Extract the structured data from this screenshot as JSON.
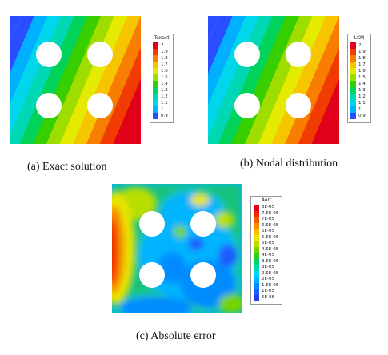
{
  "figure": {
    "panels": [
      {
        "id": "a",
        "caption": "(a) Exact solution",
        "legend_title": "Texact",
        "legend_labels": [
          "2",
          "1.9",
          "1.8",
          "1.7",
          "1.6",
          "1.5",
          "1.4",
          "1.3",
          "1.2",
          "1.1",
          "1",
          "0.9"
        ],
        "legend_colors": [
          "#e0001a",
          "#f03c00",
          "#f77e00",
          "#f7c400",
          "#e4ea00",
          "#9fdc00",
          "#37cf00",
          "#00d25a",
          "#00d7b4",
          "#00d7ec",
          "#00b0ff",
          "#2a4dff"
        ],
        "field": "linear-gradient"
      },
      {
        "id": "b",
        "caption": "(b) Nodal distribution",
        "legend_title": "LKM",
        "legend_labels": [
          "2",
          "1.9",
          "1.8",
          "1.7",
          "1.6",
          "1.5",
          "1.4",
          "1.3",
          "1.2",
          "1.1",
          "1",
          "0.9"
        ],
        "legend_colors": [
          "#e0001a",
          "#f03c00",
          "#f77e00",
          "#f7c400",
          "#e4ea00",
          "#9fdc00",
          "#37cf00",
          "#00d25a",
          "#00d7b4",
          "#00d7ec",
          "#00b0ff",
          "#2a4dff"
        ],
        "field": "linear-gradient"
      },
      {
        "id": "c",
        "caption": "(c) Absolute error",
        "legend_title": "Aerr",
        "legend_labels": [
          "8E-05",
          "7.5E-05",
          "7E-05",
          "6.5E-05",
          "6E-05",
          "5.5E-05",
          "5E-05",
          "4.5E-05",
          "4E-05",
          "3.5E-05",
          "3E-05",
          "2.5E-05",
          "2E-05",
          "1.5E-05",
          "1E-05",
          "5E-06"
        ],
        "legend_colors": [
          "#e0001a",
          "#f02800",
          "#f55a00",
          "#f78c00",
          "#f7be00",
          "#e8e400",
          "#b8df00",
          "#74d400",
          "#2ccf1a",
          "#00d070",
          "#00d6b8",
          "#00d4ee",
          "#00b4ff",
          "#008cff",
          "#1f5cff",
          "#2a3cef"
        ],
        "field": "error-blotches"
      }
    ]
  }
}
